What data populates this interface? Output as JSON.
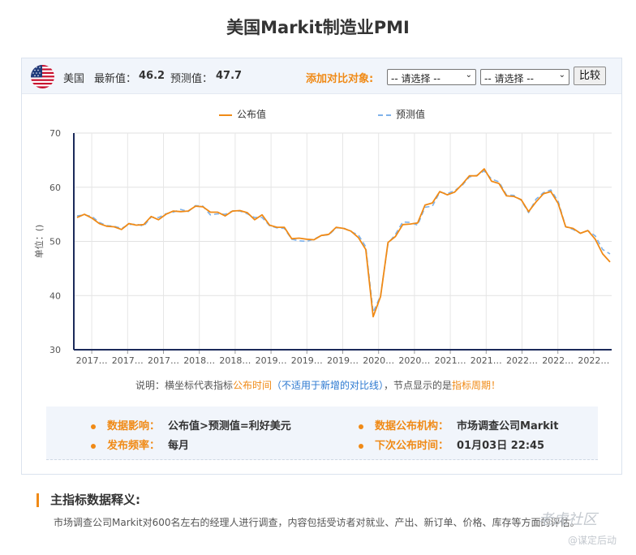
{
  "title": "美国Markit制造业PMI",
  "header": {
    "country": "美国",
    "latest_label": "最新值：",
    "latest_value": "46.2",
    "forecast_label": "预测值：",
    "forecast_value": "47.7",
    "compare_label": "添加对比对象:",
    "select1": "-- 请选择 --",
    "select2": "-- 请选择 --",
    "compare_button": "比较"
  },
  "chart_data": {
    "type": "line",
    "ylabel": "单位：()",
    "ylim": [
      30,
      70
    ],
    "yticks": [
      30,
      40,
      50,
      60,
      70
    ],
    "xtick_labels": [
      "2017…",
      "2017…",
      "2017…",
      "2018…",
      "2018…",
      "2019…",
      "2019…",
      "2019…",
      "2020…",
      "2020…",
      "2021…",
      "2021…",
      "2022…",
      "2022…",
      "2022…"
    ],
    "grid": true,
    "legend_position": "top",
    "series": [
      {
        "name": "公布值",
        "color": "#f08a16",
        "values": [
          54.4,
          55.0,
          54.3,
          53.3,
          52.8,
          52.7,
          52.2,
          53.3,
          53.0,
          53.1,
          54.6,
          54.0,
          55.0,
          55.6,
          55.5,
          55.6,
          56.5,
          56.4,
          55.4,
          55.4,
          54.7,
          55.6,
          55.7,
          55.3,
          54.0,
          54.9,
          53.0,
          52.6,
          52.6,
          50.5,
          50.6,
          50.4,
          50.3,
          51.1,
          51.3,
          52.6,
          52.4,
          51.9,
          50.7,
          48.5,
          36.1,
          39.8,
          49.8,
          50.9,
          53.1,
          53.2,
          53.4,
          56.7,
          57.1,
          59.2,
          58.6,
          59.1,
          60.5,
          62.1,
          62.1,
          63.4,
          61.1,
          60.7,
          58.4,
          58.3,
          57.7,
          55.5,
          57.3,
          58.8,
          59.2,
          57.0,
          52.7,
          52.4,
          51.5,
          52.0,
          50.4,
          47.7,
          46.2
        ]
      },
      {
        "name": "预测值",
        "color": "#7fb2ea",
        "dashed": true,
        "values": [
          54.7,
          54.9,
          54.6,
          53.5,
          52.9,
          52.8,
          52.4,
          53.1,
          53.2,
          52.8,
          54.5,
          54.4,
          55.1,
          55.4,
          55.9,
          55.5,
          56.6,
          56.5,
          54.9,
          55.1,
          55.0,
          55.6,
          55.6,
          55.1,
          54.4,
          54.4,
          52.9,
          52.5,
          52.4,
          50.4,
          50.1,
          50.0,
          50.4,
          51.1,
          51.2,
          52.5,
          52.5,
          51.8,
          51.2,
          49.0,
          36.9,
          40.0,
          49.6,
          51.3,
          53.6,
          53.5,
          53.0,
          56.3,
          56.5,
          59.1,
          58.8,
          59.4,
          60.3,
          61.9,
          62.2,
          63.0,
          61.5,
          61.0,
          58.6,
          58.5,
          57.6,
          55.3,
          57.8,
          59.0,
          59.5,
          57.4,
          52.7,
          52.2,
          51.5,
          52.0,
          51.0,
          48.5,
          47.7
        ]
      }
    ]
  },
  "note": {
    "prefix": "说明：横坐标代表指标",
    "time": "公布时间",
    "paren": "（不适用于新增的对比线）",
    "middle": "，节点显示的是",
    "period": "指标周期",
    "suffix": "！"
  },
  "info": {
    "impact_label": "数据影响：",
    "impact_value": "公布值>预测值=利好美元",
    "agency_label": "数据公布机构：",
    "agency_value": "市场调查公司Markit",
    "freq_label": "发布频率：",
    "freq_value": "每月",
    "next_label": "下次公布时间：",
    "next_value": "01月03日 22:45"
  },
  "section": {
    "title": "主指标数据释义:",
    "description": "市场调查公司Markit对600名左右的经理人进行调查，内容包括受访者对就业、产出、新订单、价格、库存等方面的评估。"
  },
  "watermark": {
    "line1": "老虎社区",
    "line2": "@谋定后动"
  }
}
